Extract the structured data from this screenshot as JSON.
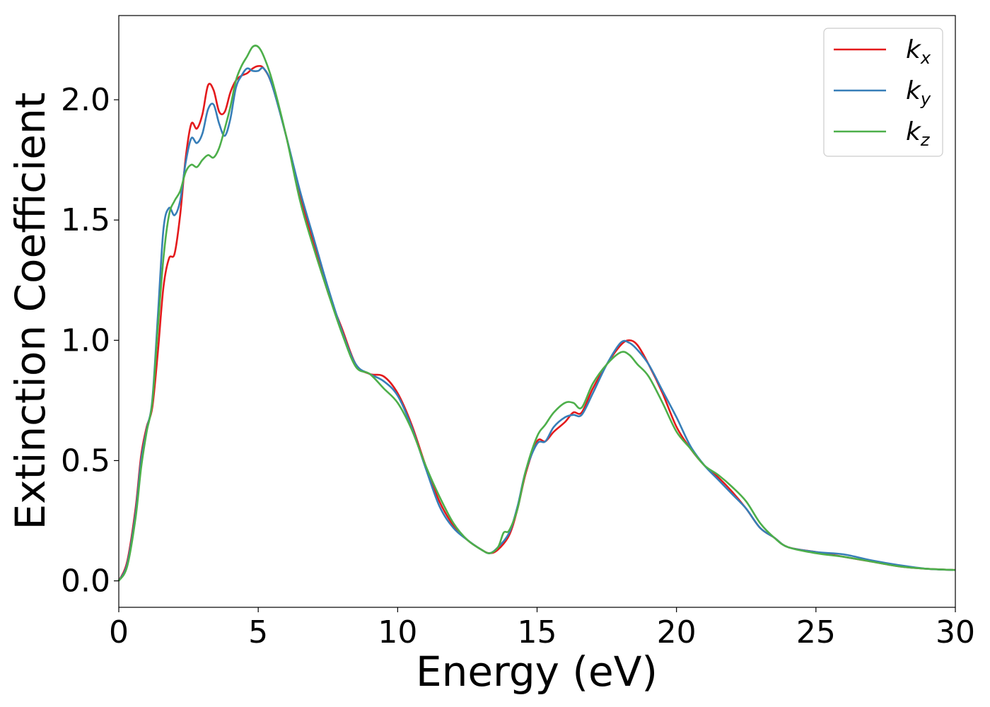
{
  "chart_data": {
    "type": "line",
    "xlabel": "Energy (eV)",
    "ylabel": "Extinction Coefficient",
    "xlim": [
      0,
      30
    ],
    "ylim": [
      -0.11,
      2.35
    ],
    "xticks": [
      0,
      5,
      10,
      15,
      20,
      25,
      30
    ],
    "xtick_labels": [
      "0",
      "5",
      "10",
      "15",
      "20",
      "25",
      "30"
    ],
    "yticks": [
      0.0,
      0.5,
      1.0,
      1.5,
      2.0
    ],
    "ytick_labels": [
      "0.0",
      "0.5",
      "1.0",
      "1.5",
      "2.0"
    ],
    "grid": false,
    "legend_position": "top-right",
    "series": [
      {
        "name": "k_x",
        "legend_main": "k",
        "legend_sub": "x",
        "color": "#e41a1c",
        "x": [
          0,
          0.3,
          0.6,
          0.8,
          1.0,
          1.2,
          1.4,
          1.6,
          1.8,
          2.0,
          2.2,
          2.4,
          2.6,
          2.8,
          3.0,
          3.2,
          3.4,
          3.6,
          3.8,
          4.0,
          4.2,
          4.4,
          4.6,
          4.8,
          5.0,
          5.2,
          5.5,
          6.0,
          6.5,
          7.0,
          7.5,
          8.0,
          8.5,
          9.0,
          9.5,
          10.0,
          10.5,
          11.0,
          11.5,
          12.0,
          12.5,
          13.0,
          13.3,
          13.6,
          14.0,
          14.3,
          14.6,
          15.0,
          15.3,
          15.6,
          16.0,
          16.3,
          16.6,
          17.0,
          17.5,
          18.0,
          18.3,
          18.6,
          19.0,
          19.5,
          20.0,
          20.5,
          21.0,
          21.5,
          22.0,
          22.5,
          23.0,
          23.5,
          24.0,
          25.0,
          26.0,
          27.0,
          28.0,
          29.0,
          30.0
        ],
        "y": [
          0.0,
          0.08,
          0.3,
          0.52,
          0.64,
          0.72,
          0.95,
          1.22,
          1.34,
          1.36,
          1.52,
          1.76,
          1.9,
          1.88,
          1.94,
          2.06,
          2.04,
          1.95,
          1.95,
          2.03,
          2.08,
          2.1,
          2.11,
          2.13,
          2.14,
          2.13,
          2.06,
          1.85,
          1.6,
          1.4,
          1.2,
          1.05,
          0.9,
          0.86,
          0.85,
          0.78,
          0.65,
          0.48,
          0.33,
          0.23,
          0.17,
          0.13,
          0.115,
          0.13,
          0.19,
          0.3,
          0.45,
          0.58,
          0.58,
          0.62,
          0.66,
          0.7,
          0.7,
          0.8,
          0.9,
          0.98,
          1.0,
          0.98,
          0.9,
          0.78,
          0.64,
          0.55,
          0.48,
          0.43,
          0.37,
          0.3,
          0.22,
          0.18,
          0.14,
          0.12,
          0.1,
          0.08,
          0.06,
          0.05,
          0.045
        ]
      },
      {
        "name": "k_y",
        "legend_main": "k",
        "legend_sub": "y",
        "color": "#377eb8",
        "x": [
          0,
          0.3,
          0.6,
          0.8,
          1.0,
          1.2,
          1.4,
          1.6,
          1.8,
          2.0,
          2.2,
          2.4,
          2.6,
          2.8,
          3.0,
          3.2,
          3.4,
          3.6,
          3.8,
          4.0,
          4.2,
          4.4,
          4.6,
          4.8,
          5.0,
          5.2,
          5.5,
          6.0,
          6.5,
          7.0,
          7.5,
          8.0,
          8.5,
          9.0,
          9.5,
          10.0,
          10.5,
          11.0,
          11.5,
          12.0,
          12.5,
          13.0,
          13.3,
          13.6,
          14.0,
          14.3,
          14.6,
          15.0,
          15.3,
          15.6,
          16.0,
          16.3,
          16.6,
          17.0,
          17.5,
          18.0,
          18.3,
          18.6,
          19.0,
          19.5,
          20.0,
          20.5,
          21.0,
          21.5,
          22.0,
          22.5,
          23.0,
          23.5,
          24.0,
          25.0,
          26.0,
          27.0,
          28.0,
          29.0,
          30.0
        ],
        "y": [
          0.0,
          0.07,
          0.28,
          0.5,
          0.63,
          0.75,
          1.1,
          1.46,
          1.55,
          1.52,
          1.58,
          1.74,
          1.84,
          1.82,
          1.86,
          1.96,
          1.98,
          1.9,
          1.85,
          1.92,
          2.05,
          2.1,
          2.13,
          2.12,
          2.12,
          2.13,
          2.06,
          1.85,
          1.62,
          1.42,
          1.22,
          1.04,
          0.9,
          0.86,
          0.83,
          0.77,
          0.64,
          0.47,
          0.31,
          0.22,
          0.17,
          0.13,
          0.115,
          0.14,
          0.2,
          0.31,
          0.46,
          0.57,
          0.58,
          0.64,
          0.68,
          0.69,
          0.69,
          0.78,
          0.9,
          0.99,
          0.99,
          0.96,
          0.9,
          0.79,
          0.68,
          0.56,
          0.48,
          0.42,
          0.36,
          0.3,
          0.22,
          0.18,
          0.14,
          0.12,
          0.11,
          0.085,
          0.065,
          0.05,
          0.045
        ]
      },
      {
        "name": "k_z",
        "legend_main": "k",
        "legend_sub": "z",
        "color": "#4daf4a",
        "x": [
          0,
          0.3,
          0.6,
          0.8,
          1.0,
          1.2,
          1.4,
          1.6,
          1.8,
          2.0,
          2.2,
          2.4,
          2.6,
          2.8,
          3.0,
          3.2,
          3.4,
          3.6,
          3.8,
          4.0,
          4.2,
          4.4,
          4.6,
          4.8,
          5.0,
          5.2,
          5.5,
          6.0,
          6.5,
          7.0,
          7.5,
          8.0,
          8.5,
          9.0,
          9.5,
          10.0,
          10.5,
          11.0,
          11.5,
          12.0,
          12.5,
          13.0,
          13.3,
          13.6,
          13.8,
          14.0,
          14.3,
          14.6,
          15.0,
          15.3,
          15.6,
          16.0,
          16.3,
          16.6,
          17.0,
          17.5,
          18.0,
          18.3,
          18.6,
          19.0,
          19.5,
          20.0,
          20.5,
          21.0,
          21.5,
          22.0,
          22.5,
          23.0,
          23.5,
          24.0,
          25.0,
          26.0,
          27.0,
          28.0,
          29.0,
          30.0
        ],
        "y": [
          0.0,
          0.06,
          0.26,
          0.47,
          0.62,
          0.74,
          1.05,
          1.34,
          1.52,
          1.58,
          1.62,
          1.7,
          1.73,
          1.72,
          1.75,
          1.77,
          1.76,
          1.8,
          1.88,
          1.97,
          2.08,
          2.14,
          2.18,
          2.22,
          2.22,
          2.18,
          2.08,
          1.85,
          1.58,
          1.38,
          1.2,
          1.03,
          0.89,
          0.86,
          0.8,
          0.74,
          0.63,
          0.48,
          0.35,
          0.24,
          0.17,
          0.13,
          0.115,
          0.14,
          0.2,
          0.21,
          0.3,
          0.46,
          0.6,
          0.65,
          0.7,
          0.74,
          0.74,
          0.72,
          0.82,
          0.9,
          0.95,
          0.94,
          0.9,
          0.85,
          0.74,
          0.62,
          0.55,
          0.48,
          0.44,
          0.39,
          0.33,
          0.24,
          0.18,
          0.14,
          0.115,
          0.1,
          0.08,
          0.06,
          0.05,
          0.045
        ]
      }
    ]
  }
}
